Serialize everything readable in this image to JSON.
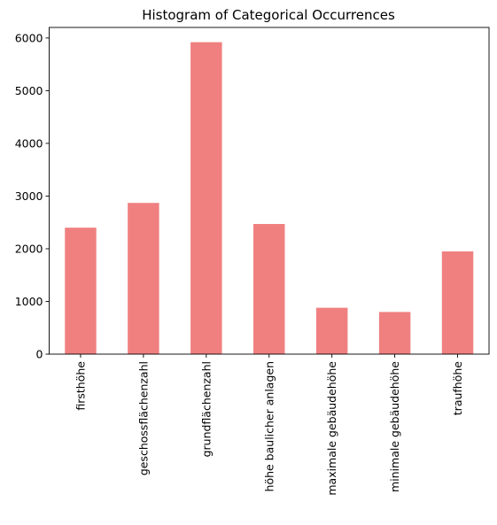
{
  "chart_data": {
    "type": "bar",
    "title": "Histogram of Categorical Occurrences",
    "xlabel": "",
    "ylabel": "",
    "categories": [
      "firsthöhe",
      "geschossflächenzahl",
      "grundflächenzahl",
      "höhe baulicher anlagen",
      "maximale gebäudehöhe",
      "minimale gebäudehöhe",
      "traufhöhe"
    ],
    "values": [
      2400,
      2870,
      5920,
      2470,
      880,
      800,
      1950
    ],
    "ylim": [
      0,
      6200
    ],
    "yticks": [
      0,
      1000,
      2000,
      3000,
      4000,
      5000,
      6000
    ],
    "bar_color": "#f08080",
    "grid": false
  }
}
